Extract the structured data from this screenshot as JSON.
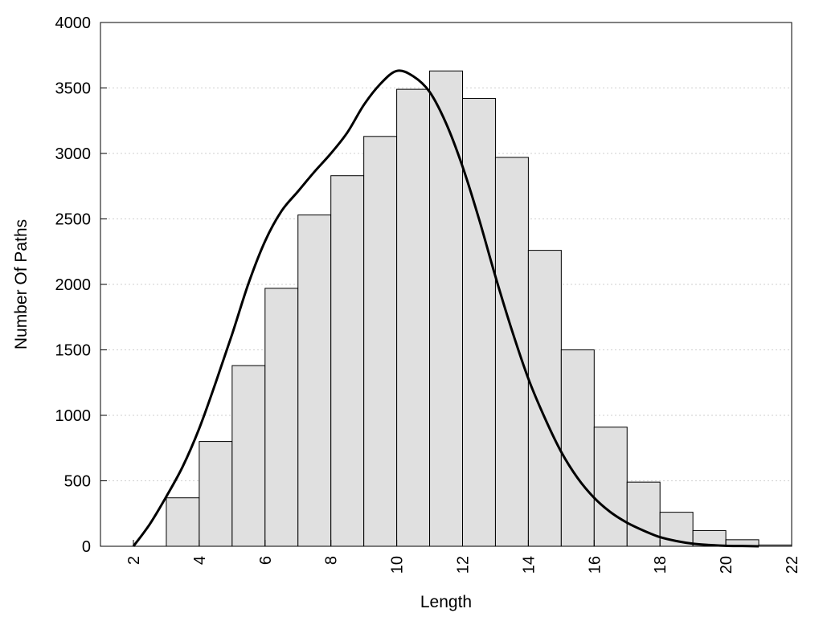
{
  "chart_data": {
    "type": "bar",
    "title": "",
    "xlabel": "Length",
    "ylabel": "Number Of Paths",
    "x": [
      2,
      3,
      4,
      5,
      6,
      7,
      8,
      9,
      10,
      11,
      12,
      13,
      14,
      15,
      16,
      17,
      18,
      19,
      20,
      21
    ],
    "values": [
      0,
      370,
      800,
      1380,
      1970,
      2530,
      2830,
      3130,
      3490,
      3630,
      3420,
      2970,
      2260,
      1500,
      910,
      490,
      260,
      120,
      50,
      10
    ],
    "xlim": [
      0,
      21
    ],
    "ylim": [
      0,
      4000
    ],
    "xticks": [
      2,
      4,
      6,
      8,
      10,
      12,
      14,
      16,
      18,
      20,
      22
    ],
    "yticks": [
      0,
      500,
      1000,
      1500,
      2000,
      2500,
      3000,
      3500,
      4000
    ],
    "grid": "horizontal-dotted",
    "bar_fill": "#e0e0e0",
    "bar_stroke": "#000000",
    "curve_color": "#000000",
    "curve": {
      "x": [
        2,
        2.5,
        3,
        3.5,
        4,
        4.5,
        5,
        5.5,
        6,
        6.5,
        7,
        7.5,
        8,
        8.5,
        9,
        9.5,
        10,
        10.5,
        11,
        11.5,
        12,
        12.5,
        13,
        13.5,
        14,
        14.5,
        15,
        15.5,
        16,
        16.5,
        17,
        17.5,
        18,
        18.5,
        19,
        19.5,
        20,
        20.5,
        21
      ],
      "y": [
        0,
        170,
        380,
        610,
        900,
        1250,
        1620,
        2010,
        2330,
        2560,
        2710,
        2860,
        3000,
        3160,
        3370,
        3530,
        3630,
        3590,
        3470,
        3230,
        2900,
        2500,
        2060,
        1650,
        1280,
        980,
        720,
        520,
        370,
        260,
        180,
        120,
        70,
        40,
        20,
        10,
        4,
        2,
        0
      ]
    }
  }
}
